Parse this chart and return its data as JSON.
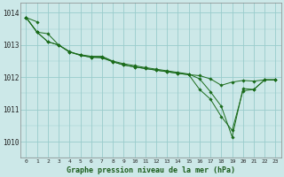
{
  "title": "Graphe pression niveau de la mer (hPa)",
  "bg_color": "#cce8e8",
  "grid_color": "#99cccc",
  "line_color": "#1a6b1a",
  "marker_color": "#1a6b1a",
  "xlim": [
    -0.5,
    23.5
  ],
  "ylim": [
    1009.5,
    1014.3
  ],
  "yticks": [
    1010,
    1011,
    1012,
    1013,
    1014
  ],
  "xticks": [
    0,
    1,
    2,
    3,
    4,
    5,
    6,
    7,
    8,
    9,
    10,
    11,
    12,
    13,
    14,
    15,
    16,
    17,
    18,
    19,
    20,
    21,
    22,
    23
  ],
  "series": [
    [
      1013.85,
      1013.72,
      null,
      null,
      null,
      null,
      null,
      null,
      null,
      null,
      null,
      null,
      null,
      null,
      null,
      null,
      null,
      null,
      null,
      null,
      null,
      null,
      null,
      null
    ],
    [
      1013.85,
      1013.4,
      1013.35,
      1013.0,
      1012.8,
      1012.68,
      1012.62,
      1012.6,
      1012.48,
      1012.38,
      1012.32,
      1012.27,
      1012.22,
      1012.17,
      1012.12,
      1012.08,
      1012.05,
      1011.95,
      1011.75,
      1011.85,
      1011.9,
      1011.88,
      1011.92,
      1011.92
    ],
    [
      1013.85,
      1013.4,
      1013.1,
      1013.0,
      1012.78,
      1012.68,
      1012.62,
      1012.62,
      1012.48,
      1012.38,
      1012.32,
      1012.27,
      1012.22,
      1012.17,
      1012.12,
      1012.08,
      1011.62,
      1011.32,
      1010.78,
      1010.35,
      1011.58,
      1011.62,
      1011.92,
      1011.92
    ],
    [
      1013.85,
      1013.4,
      1013.1,
      1013.0,
      1012.78,
      1012.7,
      1012.65,
      1012.65,
      1012.5,
      1012.42,
      1012.36,
      1012.3,
      1012.25,
      1012.2,
      1012.15,
      1012.1,
      1011.95,
      1011.55,
      1011.1,
      1010.15,
      1011.65,
      1011.62,
      1011.92,
      1011.92
    ]
  ]
}
